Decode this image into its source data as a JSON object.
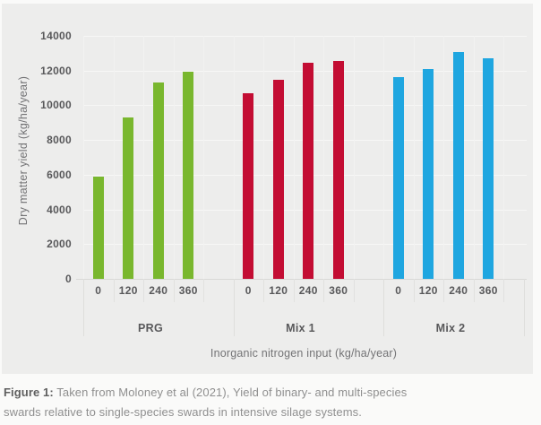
{
  "chart_data": {
    "type": "bar",
    "title": "",
    "xlabel": "Inorganic nitrogen input (kg/ha/year)",
    "ylabel": "Dry matter yield (kg/ha/year)",
    "ylim": [
      0,
      14000
    ],
    "yticks": [
      0,
      2000,
      4000,
      6000,
      8000,
      10000,
      12000,
      14000
    ],
    "grid": "horizontal-light",
    "legend": "none",
    "categories": [
      "0",
      "120",
      "240",
      "360"
    ],
    "groups": [
      {
        "name": "PRG",
        "color": "#79b72e",
        "values": [
          5900,
          9300,
          11300,
          11950
        ]
      },
      {
        "name": "Mix 1",
        "color": "#c30d33",
        "values": [
          10700,
          11450,
          12450,
          12550
        ]
      },
      {
        "name": "Mix 2",
        "color": "#1fa6e0",
        "values": [
          11600,
          12100,
          13050,
          12700
        ]
      }
    ]
  },
  "caption": {
    "label": "Figure 1:",
    "line1": " Taken from Moloney et al (2021), Yield of binary- and multi-species",
    "line2": "swards relative to single-species swards in intensive silage systems."
  },
  "colors": {
    "panel_background": "#ededec",
    "page_background": "#fafaf9",
    "prg_green": "#79b72e",
    "mix1_red": "#c30d33",
    "mix2_blue": "#1fa6e0",
    "tick_text": "#58585a",
    "axis_title_text": "#737375",
    "caption_text": "#8f8f8f"
  }
}
